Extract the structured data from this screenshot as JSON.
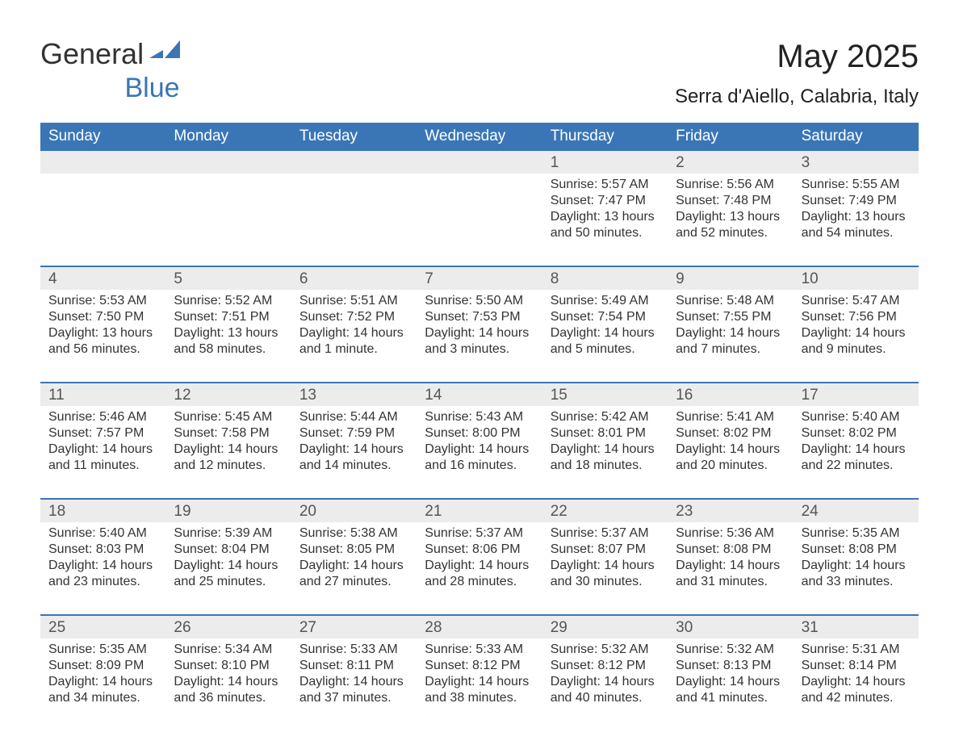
{
  "brand": {
    "general": "General",
    "blue": "Blue",
    "logo_fill": "#3a76b6"
  },
  "title": "May 2025",
  "location": "Serra d'Aiello, Calabria, Italy",
  "colors": {
    "header_bg": "#3a76b6",
    "header_fg": "#ffffff",
    "daynum_bg": "#ececec",
    "rule": "#3a76b6",
    "page_bg": "#ffffff",
    "text": "#333333"
  },
  "weekdays": [
    "Sunday",
    "Monday",
    "Tuesday",
    "Wednesday",
    "Thursday",
    "Friday",
    "Saturday"
  ],
  "weeks": [
    {
      "nums": [
        "",
        "",
        "",
        "",
        "1",
        "2",
        "3"
      ],
      "cells": [
        null,
        null,
        null,
        null,
        {
          "sunrise": "Sunrise: 5:57 AM",
          "sunset": "Sunset: 7:47 PM",
          "day1": "Daylight: 13 hours",
          "day2": "and 50 minutes."
        },
        {
          "sunrise": "Sunrise: 5:56 AM",
          "sunset": "Sunset: 7:48 PM",
          "day1": "Daylight: 13 hours",
          "day2": "and 52 minutes."
        },
        {
          "sunrise": "Sunrise: 5:55 AM",
          "sunset": "Sunset: 7:49 PM",
          "day1": "Daylight: 13 hours",
          "day2": "and 54 minutes."
        }
      ]
    },
    {
      "nums": [
        "4",
        "5",
        "6",
        "7",
        "8",
        "9",
        "10"
      ],
      "cells": [
        {
          "sunrise": "Sunrise: 5:53 AM",
          "sunset": "Sunset: 7:50 PM",
          "day1": "Daylight: 13 hours",
          "day2": "and 56 minutes."
        },
        {
          "sunrise": "Sunrise: 5:52 AM",
          "sunset": "Sunset: 7:51 PM",
          "day1": "Daylight: 13 hours",
          "day2": "and 58 minutes."
        },
        {
          "sunrise": "Sunrise: 5:51 AM",
          "sunset": "Sunset: 7:52 PM",
          "day1": "Daylight: 14 hours",
          "day2": "and 1 minute."
        },
        {
          "sunrise": "Sunrise: 5:50 AM",
          "sunset": "Sunset: 7:53 PM",
          "day1": "Daylight: 14 hours",
          "day2": "and 3 minutes."
        },
        {
          "sunrise": "Sunrise: 5:49 AM",
          "sunset": "Sunset: 7:54 PM",
          "day1": "Daylight: 14 hours",
          "day2": "and 5 minutes."
        },
        {
          "sunrise": "Sunrise: 5:48 AM",
          "sunset": "Sunset: 7:55 PM",
          "day1": "Daylight: 14 hours",
          "day2": "and 7 minutes."
        },
        {
          "sunrise": "Sunrise: 5:47 AM",
          "sunset": "Sunset: 7:56 PM",
          "day1": "Daylight: 14 hours",
          "day2": "and 9 minutes."
        }
      ]
    },
    {
      "nums": [
        "11",
        "12",
        "13",
        "14",
        "15",
        "16",
        "17"
      ],
      "cells": [
        {
          "sunrise": "Sunrise: 5:46 AM",
          "sunset": "Sunset: 7:57 PM",
          "day1": "Daylight: 14 hours",
          "day2": "and 11 minutes."
        },
        {
          "sunrise": "Sunrise: 5:45 AM",
          "sunset": "Sunset: 7:58 PM",
          "day1": "Daylight: 14 hours",
          "day2": "and 12 minutes."
        },
        {
          "sunrise": "Sunrise: 5:44 AM",
          "sunset": "Sunset: 7:59 PM",
          "day1": "Daylight: 14 hours",
          "day2": "and 14 minutes."
        },
        {
          "sunrise": "Sunrise: 5:43 AM",
          "sunset": "Sunset: 8:00 PM",
          "day1": "Daylight: 14 hours",
          "day2": "and 16 minutes."
        },
        {
          "sunrise": "Sunrise: 5:42 AM",
          "sunset": "Sunset: 8:01 PM",
          "day1": "Daylight: 14 hours",
          "day2": "and 18 minutes."
        },
        {
          "sunrise": "Sunrise: 5:41 AM",
          "sunset": "Sunset: 8:02 PM",
          "day1": "Daylight: 14 hours",
          "day2": "and 20 minutes."
        },
        {
          "sunrise": "Sunrise: 5:40 AM",
          "sunset": "Sunset: 8:02 PM",
          "day1": "Daylight: 14 hours",
          "day2": "and 22 minutes."
        }
      ]
    },
    {
      "nums": [
        "18",
        "19",
        "20",
        "21",
        "22",
        "23",
        "24"
      ],
      "cells": [
        {
          "sunrise": "Sunrise: 5:40 AM",
          "sunset": "Sunset: 8:03 PM",
          "day1": "Daylight: 14 hours",
          "day2": "and 23 minutes."
        },
        {
          "sunrise": "Sunrise: 5:39 AM",
          "sunset": "Sunset: 8:04 PM",
          "day1": "Daylight: 14 hours",
          "day2": "and 25 minutes."
        },
        {
          "sunrise": "Sunrise: 5:38 AM",
          "sunset": "Sunset: 8:05 PM",
          "day1": "Daylight: 14 hours",
          "day2": "and 27 minutes."
        },
        {
          "sunrise": "Sunrise: 5:37 AM",
          "sunset": "Sunset: 8:06 PM",
          "day1": "Daylight: 14 hours",
          "day2": "and 28 minutes."
        },
        {
          "sunrise": "Sunrise: 5:37 AM",
          "sunset": "Sunset: 8:07 PM",
          "day1": "Daylight: 14 hours",
          "day2": "and 30 minutes."
        },
        {
          "sunrise": "Sunrise: 5:36 AM",
          "sunset": "Sunset: 8:08 PM",
          "day1": "Daylight: 14 hours",
          "day2": "and 31 minutes."
        },
        {
          "sunrise": "Sunrise: 5:35 AM",
          "sunset": "Sunset: 8:08 PM",
          "day1": "Daylight: 14 hours",
          "day2": "and 33 minutes."
        }
      ]
    },
    {
      "nums": [
        "25",
        "26",
        "27",
        "28",
        "29",
        "30",
        "31"
      ],
      "cells": [
        {
          "sunrise": "Sunrise: 5:35 AM",
          "sunset": "Sunset: 8:09 PM",
          "day1": "Daylight: 14 hours",
          "day2": "and 34 minutes."
        },
        {
          "sunrise": "Sunrise: 5:34 AM",
          "sunset": "Sunset: 8:10 PM",
          "day1": "Daylight: 14 hours",
          "day2": "and 36 minutes."
        },
        {
          "sunrise": "Sunrise: 5:33 AM",
          "sunset": "Sunset: 8:11 PM",
          "day1": "Daylight: 14 hours",
          "day2": "and 37 minutes."
        },
        {
          "sunrise": "Sunrise: 5:33 AM",
          "sunset": "Sunset: 8:12 PM",
          "day1": "Daylight: 14 hours",
          "day2": "and 38 minutes."
        },
        {
          "sunrise": "Sunrise: 5:32 AM",
          "sunset": "Sunset: 8:12 PM",
          "day1": "Daylight: 14 hours",
          "day2": "and 40 minutes."
        },
        {
          "sunrise": "Sunrise: 5:32 AM",
          "sunset": "Sunset: 8:13 PM",
          "day1": "Daylight: 14 hours",
          "day2": "and 41 minutes."
        },
        {
          "sunrise": "Sunrise: 5:31 AM",
          "sunset": "Sunset: 8:14 PM",
          "day1": "Daylight: 14 hours",
          "day2": "and 42 minutes."
        }
      ]
    }
  ]
}
